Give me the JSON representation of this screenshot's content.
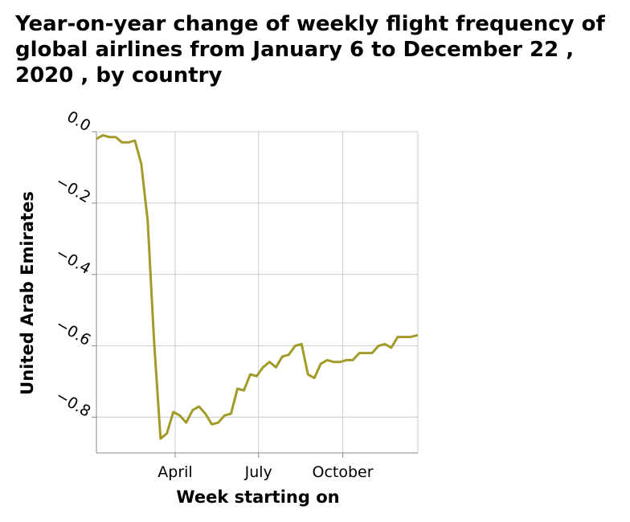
{
  "chart_data": {
    "type": "line",
    "title": "Year-on-year change of weekly flight frequency of global airlines from January 6 to December 22 , 2020 , by country",
    "xlabel": "Week starting on",
    "ylabel": "United Arab Emirates",
    "x_tick_labels": [
      "April",
      "July",
      "October"
    ],
    "x_tick_dates": [
      "2020-04-01",
      "2020-07-01",
      "2020-10-01"
    ],
    "xlim": [
      "2020-01-06",
      "2020-12-22"
    ],
    "ylim": [
      -0.9,
      0.0
    ],
    "y_ticks": [
      0.0,
      -0.2,
      -0.4,
      -0.6,
      -0.8
    ],
    "y_tick_labels": [
      "0.0",
      "−0.2",
      "−0.4",
      "−0.6",
      "−0.8"
    ],
    "grid": true,
    "line_color": "#a39b28",
    "series": [
      {
        "x": [
          "2020-01-06",
          "2020-01-13",
          "2020-01-20",
          "2020-01-27",
          "2020-02-03",
          "2020-02-10",
          "2020-02-17",
          "2020-02-24",
          "2020-03-02",
          "2020-03-09",
          "2020-03-16",
          "2020-03-23",
          "2020-03-30",
          "2020-04-06",
          "2020-04-13",
          "2020-04-20",
          "2020-04-27",
          "2020-05-04",
          "2020-05-11",
          "2020-05-18",
          "2020-05-25",
          "2020-06-01",
          "2020-06-08",
          "2020-06-15",
          "2020-06-22",
          "2020-06-29",
          "2020-07-06",
          "2020-07-13",
          "2020-07-20",
          "2020-07-27",
          "2020-08-03",
          "2020-08-10",
          "2020-08-17",
          "2020-08-24",
          "2020-08-31",
          "2020-09-07",
          "2020-09-14",
          "2020-09-21",
          "2020-09-28",
          "2020-10-05",
          "2020-10-12",
          "2020-10-19",
          "2020-10-26",
          "2020-11-02",
          "2020-11-09",
          "2020-11-16",
          "2020-11-23",
          "2020-11-30",
          "2020-12-07",
          "2020-12-14",
          "2020-12-22"
        ],
        "y": [
          -0.02,
          -0.01,
          -0.015,
          -0.015,
          -0.03,
          -0.03,
          -0.025,
          -0.09,
          -0.25,
          -0.59,
          -0.86,
          -0.845,
          -0.785,
          -0.795,
          -0.815,
          -0.78,
          -0.77,
          -0.79,
          -0.82,
          -0.815,
          -0.795,
          -0.79,
          -0.72,
          -0.725,
          -0.68,
          -0.685,
          -0.66,
          -0.645,
          -0.66,
          -0.63,
          -0.625,
          -0.6,
          -0.595,
          -0.68,
          -0.69,
          -0.65,
          -0.64,
          -0.645,
          -0.645,
          -0.64,
          -0.64,
          -0.62,
          -0.62,
          -0.62,
          -0.6,
          -0.595,
          -0.605,
          -0.575,
          -0.575,
          -0.575,
          -0.57
        ]
      }
    ]
  }
}
